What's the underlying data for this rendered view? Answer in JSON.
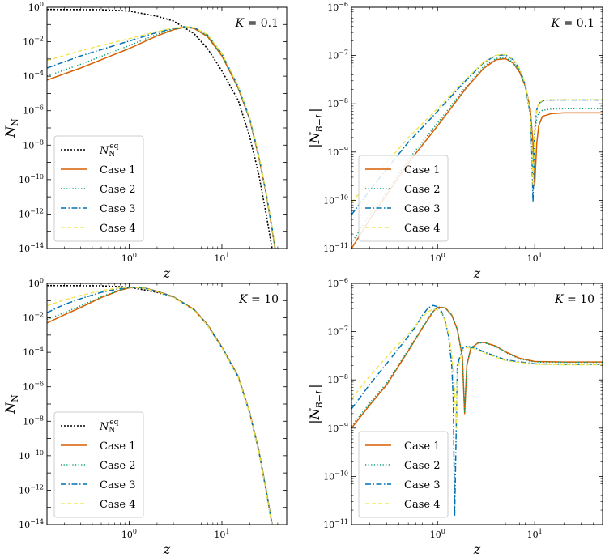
{
  "colors": {
    "eq": "#000000",
    "case1": "#d55e00",
    "case2": "#009e73",
    "case3": "#0072b2",
    "case4": "#f0e442"
  },
  "legend_labels": {
    "eq": "N_N^eq",
    "case1": "Case 1",
    "case2": "Case 2",
    "case3": "Case 3",
    "case4": "Case 4"
  },
  "chart_data": [
    {
      "type": "line",
      "panel": "top-left",
      "annotation": "K = 0.1",
      "xlabel": "z",
      "ylabel": "N_N",
      "xscale": "log",
      "yscale": "log",
      "xlim": [
        0.13,
        50
      ],
      "ylim": [
        1e-14,
        1
      ],
      "xticks": [
        "10^0",
        "10^1"
      ],
      "yticks": [
        "10^-14",
        "10^-12",
        "10^-10",
        "10^-8",
        "10^-6",
        "10^-4",
        "10^-2",
        "10^0"
      ],
      "legend": "lower-left",
      "series": [
        {
          "key": "eq",
          "name": "N_N^eq",
          "style": "dotted-dense",
          "x": [
            0.13,
            0.5,
            1,
            2,
            3,
            5,
            7,
            10,
            15,
            20,
            25,
            30,
            35,
            40
          ],
          "y": [
            0.75,
            0.72,
            0.6,
            0.3,
            0.16,
            0.03,
            0.004,
            0.0002,
            4e-06,
            3e-08,
            2e-10,
            1e-12,
            8e-15,
            1e-16
          ]
        },
        {
          "key": "case1",
          "name": "Case 1",
          "style": "solid",
          "x": [
            0.13,
            0.3,
            0.5,
            1,
            2,
            3,
            4,
            5,
            7,
            10,
            15,
            20,
            25,
            30,
            35,
            40
          ],
          "y": [
            6e-05,
            0.0003,
            0.0009,
            0.004,
            0.022,
            0.05,
            0.07,
            0.06,
            0.02,
            0.0015,
            2e-05,
            3e-07,
            2e-09,
            1.5e-11,
            1e-13,
            1e-15
          ]
        },
        {
          "key": "case2",
          "name": "Case 2",
          "style": "dotted",
          "x": [
            0.13,
            0.3,
            0.5,
            1,
            2,
            3,
            4,
            5,
            7,
            10,
            15,
            20,
            25,
            30,
            35,
            40
          ],
          "y": [
            0.0001,
            0.0005,
            0.0014,
            0.006,
            0.027,
            0.055,
            0.072,
            0.062,
            0.022,
            0.0017,
            2.2e-05,
            3.3e-07,
            2.2e-09,
            1.6e-11,
            1.1e-13,
            1.1e-15
          ]
        },
        {
          "key": "case3",
          "name": "Case 3",
          "style": "dashdot",
          "x": [
            0.13,
            0.3,
            0.5,
            1,
            2,
            3,
            4,
            5,
            7,
            10,
            15,
            20,
            25,
            30,
            35,
            40
          ],
          "y": [
            0.0003,
            0.0015,
            0.0035,
            0.011,
            0.035,
            0.06,
            0.075,
            0.066,
            0.025,
            0.002,
            2.5e-05,
            3.6e-07,
            2.4e-09,
            1.7e-11,
            1.2e-13,
            1.2e-15
          ]
        },
        {
          "key": "case4",
          "name": "Case 4",
          "style": "dashed",
          "x": [
            0.13,
            0.3,
            0.5,
            1,
            2,
            3,
            4,
            5,
            7,
            10,
            15,
            20,
            25,
            30,
            35,
            40
          ],
          "y": [
            0.0008,
            0.003,
            0.006,
            0.015,
            0.04,
            0.063,
            0.076,
            0.068,
            0.026,
            0.0021,
            2.6e-05,
            3.8e-07,
            2.5e-09,
            1.8e-11,
            1.3e-13,
            1.3e-15
          ]
        }
      ]
    },
    {
      "type": "line",
      "panel": "top-right",
      "annotation": "K = 0.1",
      "xlabel": "z",
      "ylabel": "|N_{B-L}|",
      "xscale": "log",
      "yscale": "log",
      "xlim": [
        0.13,
        50
      ],
      "ylim": [
        1e-11,
        1e-06
      ],
      "xticks": [
        "10^0",
        "10^1"
      ],
      "yticks": [
        "10^-11",
        "10^-10",
        "10^-9",
        "10^-8",
        "10^-7",
        "10^-6"
      ],
      "legend": "lower-left",
      "series": [
        {
          "key": "case1",
          "name": "Case 1",
          "style": "solid",
          "x": [
            0.13,
            0.2,
            0.3,
            0.5,
            1,
            2,
            3,
            4,
            5,
            6,
            7,
            8,
            9,
            9.6,
            10,
            10.5,
            11,
            12,
            15,
            20,
            50
          ],
          "y": [
            1e-11,
            4e-11,
            1.3e-10,
            6e-10,
            3.5e-09,
            2.2e-08,
            5.5e-08,
            8.2e-08,
            8.6e-08,
            7e-08,
            4.5e-08,
            2.3e-08,
            8e-09,
            1.5e-09,
            2e-10,
            1.5e-09,
            3.5e-09,
            5.5e-09,
            6.3e-09,
            6.5e-09,
            6.5e-09
          ]
        },
        {
          "key": "case2",
          "name": "Case 2",
          "style": "dotted",
          "x": [
            0.13,
            0.2,
            0.3,
            0.5,
            1,
            2,
            3,
            4,
            5,
            6,
            7,
            8,
            9,
            9.5,
            10,
            10.5,
            11,
            12,
            15,
            20,
            50
          ],
          "y": [
            1.3e-11,
            5e-11,
            1.5e-10,
            7e-10,
            4e-09,
            2.4e-08,
            6e-08,
            8.7e-08,
            9e-08,
            7.3e-08,
            4.7e-08,
            2.3e-08,
            6e-09,
            5e-10,
            2.5e-09,
            5e-09,
            6.5e-09,
            7.3e-09,
            7.8e-09,
            7.9e-09,
            7.9e-09
          ]
        },
        {
          "key": "case3",
          "name": "Case 3",
          "style": "dashdot",
          "x": [
            0.13,
            0.2,
            0.3,
            0.5,
            1,
            2,
            3,
            4,
            5,
            6,
            7,
            8,
            9,
            9.3,
            9.6,
            10,
            10.5,
            11,
            12,
            15,
            20,
            50
          ],
          "y": [
            5e-11,
            1.6e-10,
            4.5e-10,
            1.6e-09,
            7e-09,
            3.2e-08,
            7.2e-08,
            1e-07,
            1.03e-07,
            8.2e-08,
            5.2e-08,
            2.5e-08,
            6e-09,
            1.5e-09,
            9e-11,
            3e-09,
            7.5e-09,
            1e-08,
            1.15e-08,
            1.2e-08,
            1.2e-08,
            1.2e-08
          ]
        },
        {
          "key": "case4",
          "name": "Case 4",
          "style": "dashed",
          "x": [
            0.13,
            0.2,
            0.3,
            0.5,
            1,
            2,
            3,
            4,
            5,
            6,
            7,
            8,
            9,
            9.3,
            9.6,
            10,
            10.5,
            11,
            12,
            15,
            20,
            50
          ],
          "y": [
            9e-11,
            2.5e-10,
            6e-10,
            2e-09,
            8e-09,
            3.4e-08,
            7.4e-08,
            1.02e-07,
            1.05e-07,
            8.4e-08,
            5.3e-08,
            2.6e-08,
            6.5e-09,
            2e-09,
            2e-10,
            3.2e-09,
            7.7e-09,
            1.02e-08,
            1.17e-08,
            1.22e-08,
            1.22e-08,
            1.22e-08
          ]
        }
      ]
    },
    {
      "type": "line",
      "panel": "bottom-left",
      "annotation": "K = 10",
      "xlabel": "z",
      "ylabel": "N_N",
      "xscale": "log",
      "yscale": "log",
      "xlim": [
        0.13,
        50
      ],
      "ylim": [
        1e-14,
        1
      ],
      "xticks": [
        "10^0",
        "10^1"
      ],
      "yticks": [
        "10^-14",
        "10^-12",
        "10^-10",
        "10^-8",
        "10^-6",
        "10^-4",
        "10^-2",
        "10^0"
      ],
      "legend": "lower-left",
      "series": [
        {
          "key": "eq",
          "name": "N_N^eq",
          "style": "dotted-dense",
          "x": [
            0.13,
            0.5,
            1,
            2,
            3,
            5,
            7,
            10,
            15,
            20,
            25,
            30,
            35,
            40
          ],
          "y": [
            0.75,
            0.72,
            0.6,
            0.3,
            0.16,
            0.03,
            0.004,
            0.0002,
            4e-06,
            3e-08,
            2e-10,
            1e-12,
            8e-15,
            1e-16
          ]
        },
        {
          "key": "case1",
          "name": "Case 1",
          "style": "solid",
          "x": [
            0.13,
            0.2,
            0.3,
            0.5,
            0.8,
            1,
            1.2,
            1.5,
            2,
            3,
            5,
            7,
            10,
            15,
            20,
            25,
            30,
            35,
            40
          ],
          "y": [
            0.005,
            0.015,
            0.04,
            0.15,
            0.4,
            0.55,
            0.58,
            0.52,
            0.35,
            0.17,
            0.031,
            0.004,
            0.0002,
            4e-06,
            3e-08,
            2e-10,
            1e-12,
            8e-15,
            1e-16
          ]
        },
        {
          "key": "case2",
          "name": "Case 2",
          "style": "dotted",
          "x": [
            0.13,
            0.2,
            0.3,
            0.5,
            0.8,
            1,
            1.2,
            1.5,
            2,
            3,
            5,
            7,
            10,
            15,
            20,
            25,
            30,
            35,
            40
          ],
          "y": [
            0.008,
            0.02,
            0.05,
            0.17,
            0.42,
            0.56,
            0.58,
            0.52,
            0.34,
            0.165,
            0.03,
            0.0038,
            0.00019,
            3.8e-06,
            2.9e-08,
            1.9e-10,
            1e-12,
            7.5e-15,
            1e-16
          ]
        },
        {
          "key": "case3",
          "name": "Case 3",
          "style": "dashdot",
          "x": [
            0.13,
            0.2,
            0.3,
            0.5,
            0.8,
            1,
            1.2,
            1.5,
            2,
            3,
            5,
            7,
            10,
            15,
            20,
            25,
            30,
            35,
            40
          ],
          "y": [
            0.02,
            0.06,
            0.13,
            0.3,
            0.5,
            0.58,
            0.58,
            0.5,
            0.33,
            0.16,
            0.029,
            0.0037,
            0.000185,
            3.7e-06,
            2.8e-08,
            1.85e-10,
            9.5e-13,
            7.3e-15,
            1e-16
          ]
        },
        {
          "key": "case4",
          "name": "Case 4",
          "style": "dashed",
          "x": [
            0.13,
            0.2,
            0.3,
            0.5,
            0.8,
            1,
            1.2,
            1.5,
            2,
            3,
            5,
            7,
            10,
            15,
            20,
            25,
            30,
            35,
            40
          ],
          "y": [
            0.05,
            0.11,
            0.2,
            0.38,
            0.55,
            0.6,
            0.58,
            0.5,
            0.33,
            0.155,
            0.028,
            0.0036,
            0.00018,
            3.6e-06,
            2.7e-08,
            1.8e-10,
            9e-13,
            7e-15,
            1e-16
          ]
        }
      ]
    },
    {
      "type": "line",
      "panel": "bottom-right",
      "annotation": "K = 10",
      "xlabel": "z",
      "ylabel": "|N_{B-L}|",
      "xscale": "log",
      "yscale": "log",
      "xlim": [
        0.13,
        50
      ],
      "ylim": [
        1e-11,
        1e-06
      ],
      "xticks": [
        "10^0",
        "10^1"
      ],
      "yticks": [
        "10^-11",
        "10^-10",
        "10^-9",
        "10^-8",
        "10^-7",
        "10^-6"
      ],
      "legend": "lower-left",
      "series": [
        {
          "key": "case1",
          "name": "Case 1",
          "style": "solid",
          "x": [
            0.13,
            0.2,
            0.3,
            0.5,
            0.7,
            0.9,
            1.0,
            1.2,
            1.4,
            1.6,
            1.8,
            1.9,
            2.0,
            2.2,
            2.6,
            3,
            4,
            5,
            7,
            10,
            20,
            50
          ],
          "y": [
            1e-09,
            3e-09,
            8e-09,
            4e-08,
            1.2e-07,
            2.6e-07,
            3.2e-07,
            3.1e-07,
            2.2e-07,
            1.1e-07,
            3e-08,
            2e-09,
            2e-08,
            4.5e-08,
            5.8e-08,
            6e-08,
            5e-08,
            3.8e-08,
            2.8e-08,
            2.4e-08,
            2.35e-08,
            2.35e-08
          ]
        },
        {
          "key": "case2",
          "name": "Case 2",
          "style": "dotted",
          "x": [
            0.13,
            0.2,
            0.3,
            0.5,
            0.7,
            0.9,
            1.0,
            1.2,
            1.4,
            1.6,
            1.8,
            1.9,
            2.0,
            2.2,
            2.6,
            3,
            4,
            5,
            7,
            10,
            20,
            50
          ],
          "y": [
            1.1e-09,
            3.3e-09,
            8.7e-09,
            4.2e-08,
            1.25e-07,
            2.7e-07,
            3.25e-07,
            3.12e-07,
            2.2e-07,
            1.1e-07,
            2.8e-08,
            2.2e-09,
            2.1e-08,
            4.6e-08,
            5.8e-08,
            5.9e-08,
            4.9e-08,
            3.7e-08,
            2.7e-08,
            2.35e-08,
            2.3e-08,
            2.3e-08
          ]
        },
        {
          "key": "case3",
          "name": "Case 3",
          "style": "dashdot",
          "x": [
            0.13,
            0.2,
            0.3,
            0.5,
            0.6,
            0.7,
            0.8,
            0.9,
            1.0,
            1.1,
            1.2,
            1.3,
            1.4,
            1.45,
            1.5,
            1.6,
            1.8,
            2,
            2.5,
            3,
            5,
            10,
            20,
            50
          ],
          "y": [
            2.5e-09,
            8e-09,
            2.2e-08,
            8e-08,
            1.3e-07,
            2.2e-07,
            3.1e-07,
            3.5e-07,
            3.3e-07,
            2.6e-07,
            1.6e-07,
            8e-08,
            2e-08,
            4e-09,
            1.5e-11,
            2e-08,
            4.5e-08,
            5e-08,
            4.5e-08,
            3.8e-08,
            2.6e-08,
            2.15e-08,
            2.1e-08,
            2.1e-08
          ]
        },
        {
          "key": "case4",
          "name": "Case 4",
          "style": "dashed",
          "x": [
            0.13,
            0.2,
            0.3,
            0.5,
            0.6,
            0.7,
            0.8,
            0.9,
            1.0,
            1.1,
            1.2,
            1.3,
            1.4,
            1.5,
            1.55,
            1.6,
            1.8,
            2,
            2.5,
            3,
            5,
            10,
            20,
            50
          ],
          "y": [
            4e-09,
            1.2e-08,
            3e-08,
            9e-08,
            1.4e-07,
            2e-07,
            2.6e-07,
            2.9e-07,
            2.8e-07,
            2.4e-07,
            1.6e-07,
            9e-08,
            3.5e-08,
            6e-09,
            1e-09,
            1.5e-08,
            4e-08,
            4.7e-08,
            4.3e-08,
            3.6e-08,
            2.5e-08,
            2.1e-08,
            2.05e-08,
            2.05e-08
          ]
        }
      ]
    }
  ]
}
